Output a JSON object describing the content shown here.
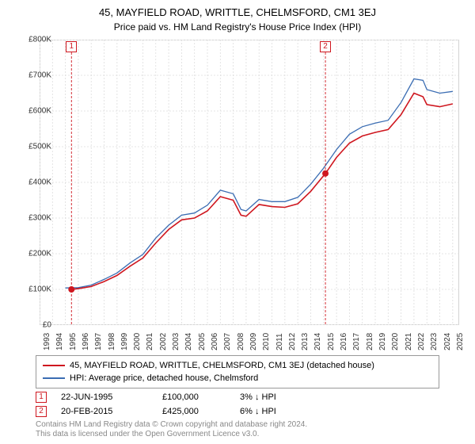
{
  "title": "45, MAYFIELD ROAD, WRITTLE, CHELMSFORD, CM1 3EJ",
  "subtitle": "Price paid vs. HM Land Registry's House Price Index (HPI)",
  "chart": {
    "type": "line",
    "background_color": "#ffffff",
    "plot_border_color": "#aaaaaa",
    "grid_color": "#dddddd",
    "grid_dash": "2,2",
    "x_min": 1993,
    "x_max": 2025.5,
    "y_min": 0,
    "y_max": 800000,
    "y_ticks": [
      0,
      100000,
      200000,
      300000,
      400000,
      500000,
      600000,
      700000,
      800000
    ],
    "y_tick_labels": [
      "£0",
      "£100K",
      "£200K",
      "£300K",
      "£400K",
      "£500K",
      "£600K",
      "£700K",
      "£800K"
    ],
    "x_ticks": [
      1993,
      1994,
      1995,
      1996,
      1997,
      1998,
      1999,
      2000,
      2001,
      2002,
      2003,
      2004,
      2005,
      2006,
      2007,
      2008,
      2009,
      2010,
      2011,
      2012,
      2013,
      2014,
      2015,
      2016,
      2017,
      2018,
      2019,
      2020,
      2021,
      2022,
      2023,
      2024,
      2025
    ],
    "series": [
      {
        "name": "45, MAYFIELD ROAD, WRITTLE, CHELMSFORD, CM1 3EJ (detached house)",
        "color": "#cf171f",
        "width": 1.6,
        "data": [
          [
            1995.47,
            100000
          ],
          [
            1996,
            102000
          ],
          [
            1997,
            108000
          ],
          [
            1998,
            122000
          ],
          [
            1999,
            139000
          ],
          [
            2000,
            165000
          ],
          [
            2001,
            188000
          ],
          [
            2002,
            230000
          ],
          [
            2003,
            268000
          ],
          [
            2004,
            295000
          ],
          [
            2005,
            300000
          ],
          [
            2006,
            320000
          ],
          [
            2007,
            360000
          ],
          [
            2008,
            350000
          ],
          [
            2008.6,
            308000
          ],
          [
            2009,
            305000
          ],
          [
            2010,
            338000
          ],
          [
            2011,
            332000
          ],
          [
            2012,
            330000
          ],
          [
            2013,
            340000
          ],
          [
            2014,
            375000
          ],
          [
            2015.14,
            425000
          ],
          [
            2016,
            470000
          ],
          [
            2017,
            510000
          ],
          [
            2018,
            530000
          ],
          [
            2019,
            540000
          ],
          [
            2020,
            548000
          ],
          [
            2021,
            590000
          ],
          [
            2022,
            650000
          ],
          [
            2022.7,
            640000
          ],
          [
            2023,
            618000
          ],
          [
            2024,
            612000
          ],
          [
            2025,
            620000
          ]
        ]
      },
      {
        "name": "HPI: Average price, detached house, Chelmsford",
        "color": "#3b6db3",
        "width": 1.3,
        "data": [
          [
            1995,
            104000
          ],
          [
            1996,
            105000
          ],
          [
            1997,
            112000
          ],
          [
            1998,
            128000
          ],
          [
            1999,
            146000
          ],
          [
            2000,
            174000
          ],
          [
            2001,
            198000
          ],
          [
            2002,
            244000
          ],
          [
            2003,
            280000
          ],
          [
            2004,
            308000
          ],
          [
            2005,
            314000
          ],
          [
            2006,
            336000
          ],
          [
            2007,
            378000
          ],
          [
            2008,
            368000
          ],
          [
            2008.6,
            324000
          ],
          [
            2009,
            320000
          ],
          [
            2010,
            352000
          ],
          [
            2011,
            346000
          ],
          [
            2012,
            346000
          ],
          [
            2013,
            358000
          ],
          [
            2014,
            395000
          ],
          [
            2015,
            440000
          ],
          [
            2016,
            492000
          ],
          [
            2017,
            535000
          ],
          [
            2018,
            556000
          ],
          [
            2019,
            566000
          ],
          [
            2020,
            574000
          ],
          [
            2021,
            624000
          ],
          [
            2022,
            690000
          ],
          [
            2022.7,
            686000
          ],
          [
            2023,
            660000
          ],
          [
            2024,
            650000
          ],
          [
            2025,
            655000
          ]
        ]
      }
    ],
    "sale_markers": [
      {
        "n": "1",
        "x": 1995.47,
        "y": 100000,
        "color": "#cf171f"
      },
      {
        "n": "2",
        "x": 2015.14,
        "y": 425000,
        "color": "#cf171f"
      }
    ]
  },
  "legend": {
    "items": [
      {
        "color": "#cf171f",
        "label": "45, MAYFIELD ROAD, WRITTLE, CHELMSFORD, CM1 3EJ (detached house)"
      },
      {
        "color": "#3b6db3",
        "label": "HPI: Average price, detached house, Chelmsford"
      }
    ]
  },
  "sales_table": {
    "rows": [
      {
        "n": "1",
        "color": "#cf171f",
        "date": "22-JUN-1995",
        "price": "£100,000",
        "pct": "3% ↓ HPI"
      },
      {
        "n": "2",
        "color": "#cf171f",
        "date": "20-FEB-2015",
        "price": "£425,000",
        "pct": "6% ↓ HPI"
      }
    ]
  },
  "footer_line1": "Contains HM Land Registry data © Crown copyright and database right 2024.",
  "footer_line2": "This data is licensed under the Open Government Licence v3.0."
}
